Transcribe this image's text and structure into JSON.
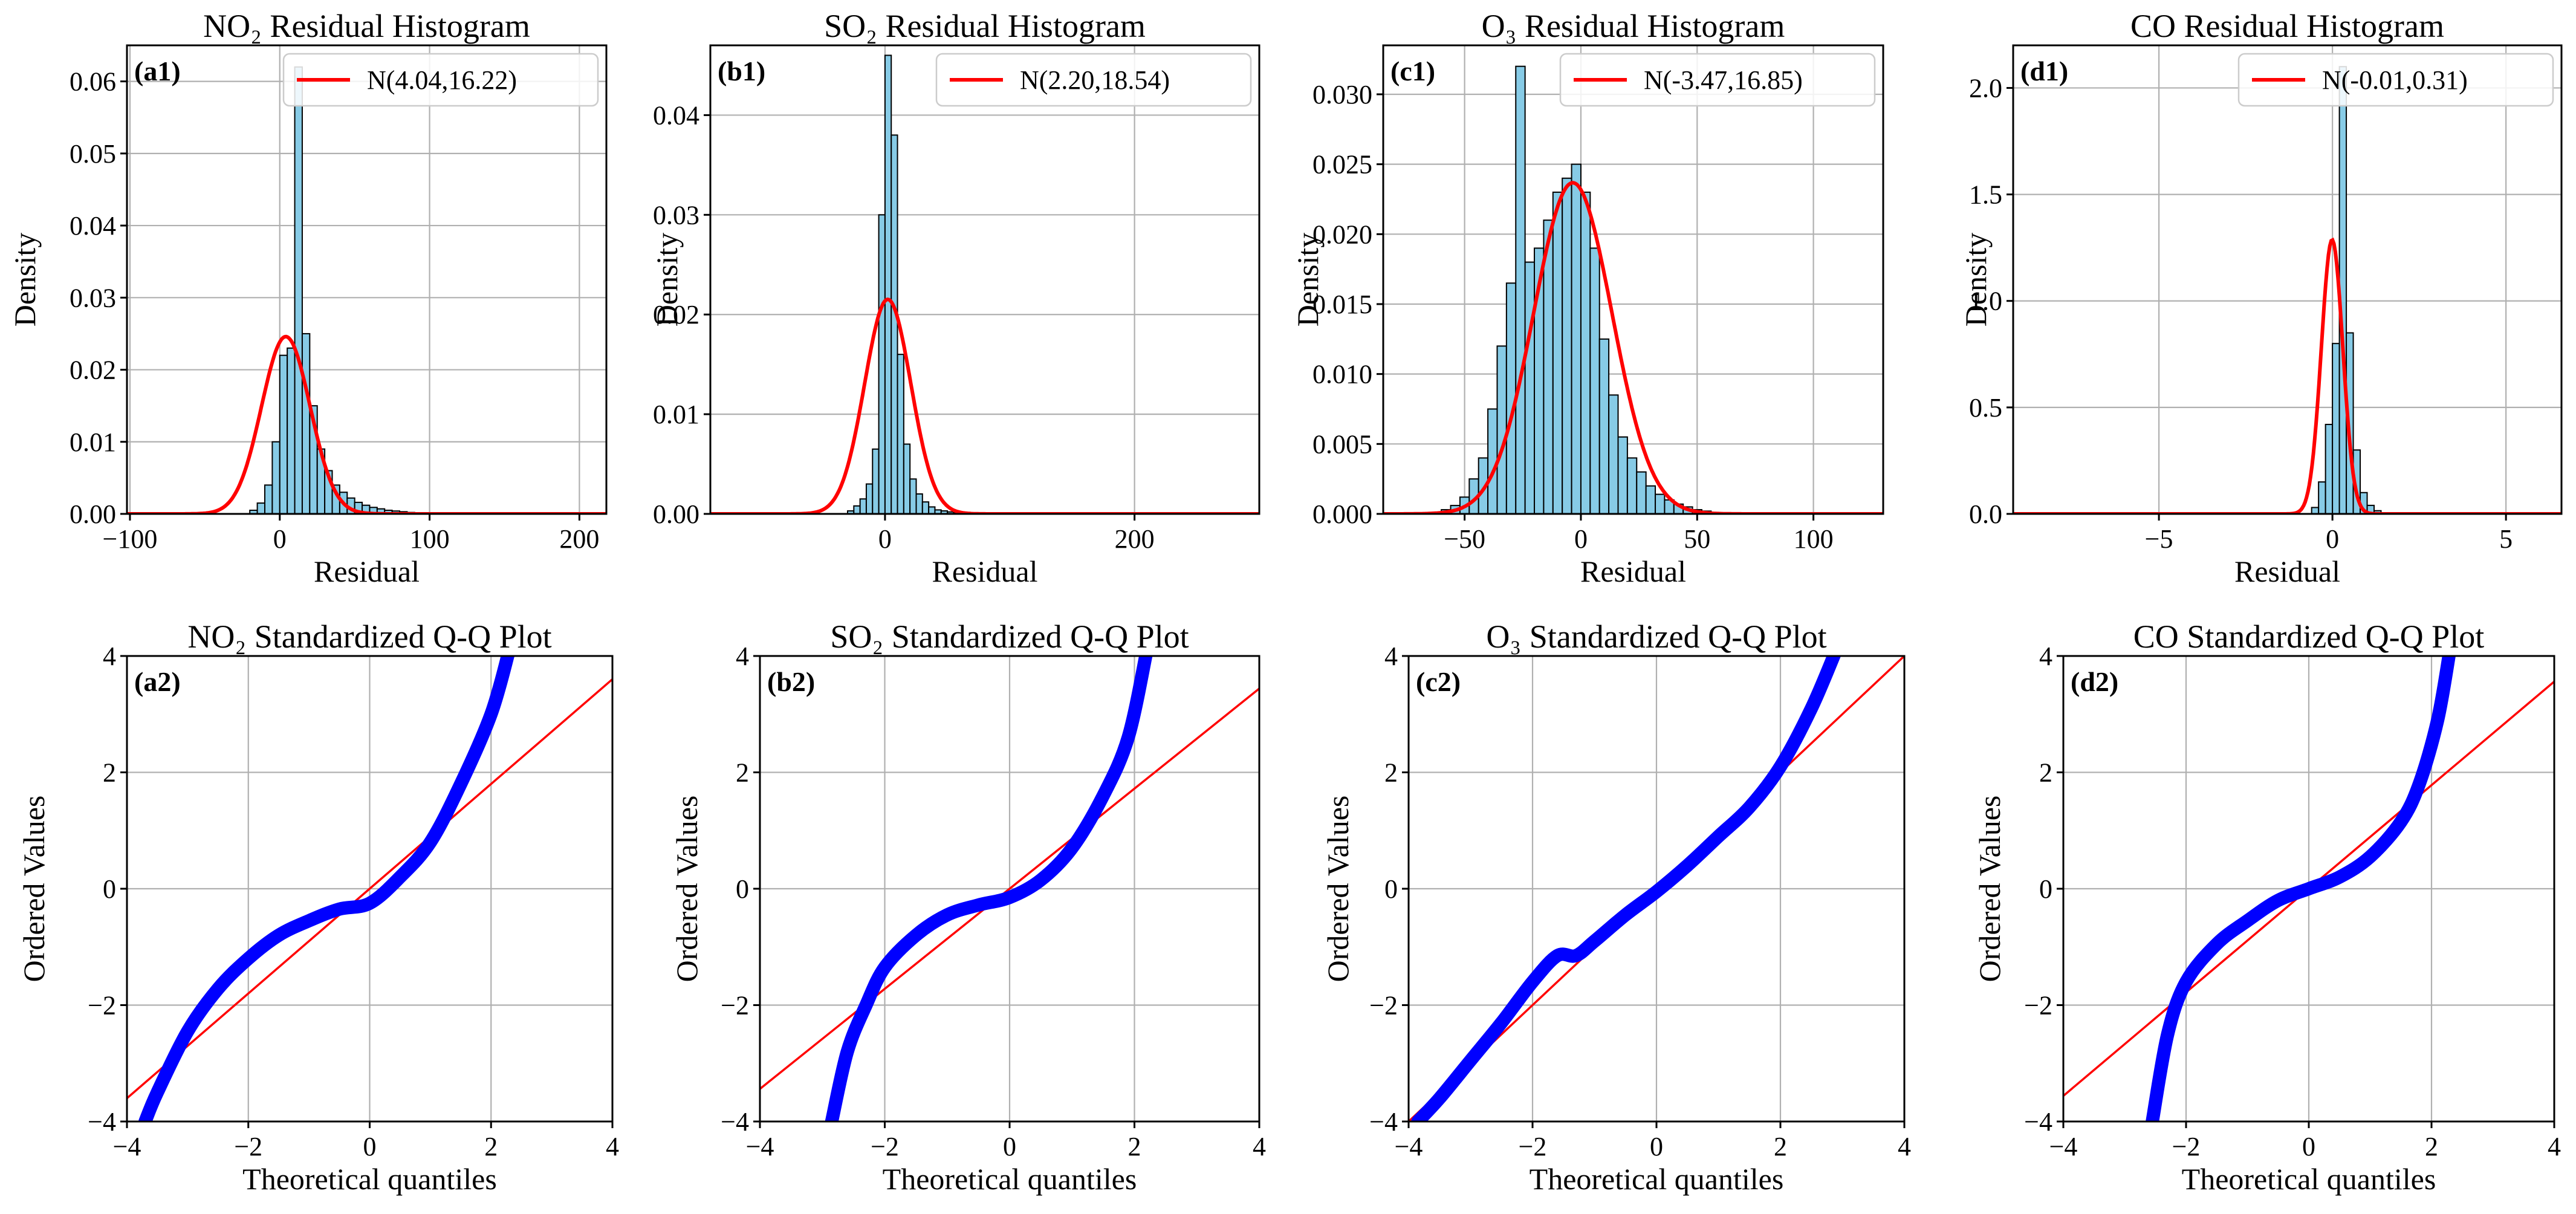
{
  "figure": {
    "background": "#ffffff",
    "hist_color": "#87cbe6",
    "fit_color": "#ff0000",
    "qq_color": "#0000ff"
  },
  "chart_data": [
    {
      "id": "a1",
      "type": "bar",
      "panel_label": "(a1)",
      "title": "NO₂ Residual Histogram",
      "xlabel": "Residual",
      "ylabel": "Density",
      "xlim": [
        -102,
        218
      ],
      "ylim": [
        0,
        0.065
      ],
      "xticks": [
        -100,
        0,
        100,
        200
      ],
      "xticklabels": [
        "−100",
        "0",
        "100",
        "200"
      ],
      "yticks": [
        0,
        0.01,
        0.02,
        0.03,
        0.04,
        0.05,
        0.06
      ],
      "yticklabels": [
        "0.00",
        "0.01",
        "0.02",
        "0.03",
        "0.04",
        "0.05",
        "0.06"
      ],
      "bin_start": -20,
      "bin_width": 5,
      "values": [
        0.0005,
        0.0015,
        0.004,
        0.01,
        0.022,
        0.023,
        0.062,
        0.025,
        0.015,
        0.009,
        0.006,
        0.004,
        0.003,
        0.0022,
        0.0016,
        0.0012,
        0.0009,
        0.0007,
        0.0005,
        0.0004,
        0.0003,
        0.0002,
        0.00015,
        0.0001
      ],
      "fit": {
        "mean": 4.04,
        "sd": 16.22
      },
      "legend": "N(4.04,16.22)"
    },
    {
      "id": "b1",
      "type": "bar",
      "panel_label": "(b1)",
      "title": "SO₂ Residual Histogram",
      "xlabel": "Residual",
      "ylabel": "Density",
      "xlim": [
        -140,
        300
      ],
      "ylim": [
        0,
        0.047
      ],
      "xticks": [
        0,
        200
      ],
      "xticklabels": [
        "0",
        "200"
      ],
      "yticks": [
        0,
        0.01,
        0.02,
        0.03,
        0.04
      ],
      "yticklabels": [
        "0.00",
        "0.01",
        "0.02",
        "0.03",
        "0.04"
      ],
      "bin_start": -30,
      "bin_width": 5,
      "values": [
        0.0003,
        0.0008,
        0.0015,
        0.003,
        0.0065,
        0.03,
        0.046,
        0.038,
        0.016,
        0.007,
        0.0035,
        0.002,
        0.0012,
        0.0007,
        0.0004,
        0.0003,
        0.0002,
        0.0001
      ],
      "fit": {
        "mean": 2.2,
        "sd": 18.54
      },
      "legend": "N(2.20,18.54)"
    },
    {
      "id": "c1",
      "type": "bar",
      "panel_label": "(c1)",
      "title": "O₃ Residual Histogram",
      "xlabel": "Residual",
      "ylabel": "Density",
      "xlim": [
        -85,
        130
      ],
      "ylim": [
        0,
        0.0335
      ],
      "xticks": [
        -50,
        0,
        50,
        100
      ],
      "xticklabels": [
        "−50",
        "0",
        "50",
        "100"
      ],
      "yticks": [
        0,
        0.005,
        0.01,
        0.015,
        0.02,
        0.025,
        0.03
      ],
      "yticklabels": [
        "0.000",
        "0.005",
        "0.010",
        "0.015",
        "0.020",
        "0.025",
        "0.030"
      ],
      "bin_start": -60,
      "bin_width": 4,
      "values": [
        0.0003,
        0.0006,
        0.0012,
        0.0025,
        0.004,
        0.0075,
        0.012,
        0.0165,
        0.032,
        0.018,
        0.019,
        0.021,
        0.023,
        0.024,
        0.025,
        0.023,
        0.019,
        0.0125,
        0.0085,
        0.0055,
        0.004,
        0.003,
        0.002,
        0.0014,
        0.001,
        0.0007,
        0.0005,
        0.0003,
        0.0002,
        0.0001
      ],
      "fit": {
        "mean": -3.47,
        "sd": 16.85
      },
      "legend": "N(-3.47,16.85)"
    },
    {
      "id": "d1",
      "type": "bar",
      "panel_label": "(d1)",
      "title": "CO Residual Histogram",
      "xlabel": "Residual",
      "ylabel": "Density",
      "xlim": [
        -9.2,
        6.6
      ],
      "ylim": [
        0,
        2.2
      ],
      "xticks": [
        -5,
        0,
        5
      ],
      "xticklabels": [
        "−5",
        "0",
        "5"
      ],
      "yticks": [
        0,
        0.5,
        1.0,
        1.5,
        2.0
      ],
      "yticklabels": [
        "0.0",
        "0.5",
        "1.0",
        "1.5",
        "2.0"
      ],
      "bin_start": -0.6,
      "bin_width": 0.2,
      "values": [
        0.03,
        0.15,
        0.42,
        0.8,
        2.1,
        0.85,
        0.3,
        0.1,
        0.04,
        0.015
      ],
      "fit": {
        "mean": -0.01,
        "sd": 0.31
      },
      "legend": "N(-0.01,0.31)"
    },
    {
      "id": "a2",
      "type": "line",
      "panel_label": "(a2)",
      "title": "NO₂ Standardized Q-Q Plot",
      "xlabel": "Theoretical quantiles",
      "ylabel": "Ordered Values",
      "xlim": [
        -4,
        4
      ],
      "ylim": [
        -4,
        4
      ],
      "xticks": [
        -4,
        -2,
        0,
        2,
        4
      ],
      "xticklabels": [
        "−4",
        "−2",
        "0",
        "2",
        "4"
      ],
      "yticks": [
        -4,
        -2,
        0,
        2,
        4
      ],
      "yticklabels": [
        "−4",
        "−2",
        "0",
        "2",
        "4"
      ],
      "ref_line": {
        "slope": 0.9,
        "intercept": 0.0
      },
      "series": {
        "name": "ordered values",
        "x": [
          -3.7,
          -3.5,
          -3.0,
          -2.5,
          -2.0,
          -1.5,
          -1.0,
          -0.5,
          0.0,
          0.5,
          1.0,
          1.5,
          2.0,
          2.3
        ],
        "values": [
          -4.0,
          -3.5,
          -2.45,
          -1.72,
          -1.2,
          -0.8,
          -0.55,
          -0.35,
          -0.25,
          0.2,
          0.8,
          1.8,
          3.0,
          4.1
        ]
      }
    },
    {
      "id": "b2",
      "type": "line",
      "panel_label": "(b2)",
      "title": "SO₂ Standardized Q-Q Plot",
      "xlabel": "Theoretical quantiles",
      "ylabel": "Ordered Values",
      "xlim": [
        -4,
        4
      ],
      "ylim": [
        -4,
        4
      ],
      "xticks": [
        -4,
        -2,
        0,
        2,
        4
      ],
      "xticklabels": [
        "−4",
        "−2",
        "0",
        "2",
        "4"
      ],
      "yticks": [
        -4,
        -2,
        0,
        2,
        4
      ],
      "yticklabels": [
        "−4",
        "−2",
        "0",
        "2",
        "4"
      ],
      "ref_line": {
        "slope": 0.86,
        "intercept": 0.0
      },
      "series": {
        "name": "ordered values",
        "x": [
          -2.85,
          -2.6,
          -2.3,
          -2.0,
          -1.5,
          -1.0,
          -0.5,
          0.0,
          0.5,
          1.0,
          1.5,
          1.9,
          2.2
        ],
        "values": [
          -4.0,
          -2.8,
          -2.0,
          -1.35,
          -0.8,
          -0.45,
          -0.28,
          -0.15,
          0.15,
          0.7,
          1.6,
          2.6,
          4.1
        ]
      }
    },
    {
      "id": "c2",
      "type": "line",
      "panel_label": "(c2)",
      "title": "O₃ Standardized Q-Q Plot",
      "xlabel": "Theoretical quantiles",
      "ylabel": "Ordered Values",
      "xlim": [
        -4,
        4
      ],
      "ylim": [
        -4,
        4
      ],
      "xticks": [
        -4,
        -2,
        0,
        2,
        4
      ],
      "xticklabels": [
        "−4",
        "−2",
        "0",
        "2",
        "4"
      ],
      "yticks": [
        -4,
        -2,
        0,
        2,
        4
      ],
      "yticklabels": [
        "−4",
        "−2",
        "0",
        "2",
        "4"
      ],
      "ref_line": {
        "slope": 1.0,
        "intercept": 0.0
      },
      "series": {
        "name": "ordered values",
        "x": [
          -3.85,
          -3.5,
          -3.0,
          -2.5,
          -2.0,
          -1.6,
          -1.3,
          -1.0,
          -0.5,
          0.0,
          0.5,
          1.0,
          1.5,
          2.0,
          2.5,
          2.9
        ],
        "values": [
          -4.0,
          -3.6,
          -2.95,
          -2.3,
          -1.6,
          -1.15,
          -1.15,
          -0.9,
          -0.45,
          -0.05,
          0.4,
          0.9,
          1.4,
          2.1,
          3.1,
          4.1
        ]
      }
    },
    {
      "id": "d2",
      "type": "line",
      "panel_label": "(d2)",
      "title": "CO Standardized Q-Q Plot",
      "xlabel": "Theoretical quantiles",
      "ylabel": "Ordered Values",
      "xlim": [
        -4,
        4
      ],
      "ylim": [
        -4,
        4
      ],
      "xticks": [
        -4,
        -2,
        0,
        2,
        4
      ],
      "xticklabels": [
        "−4",
        "−2",
        "0",
        "2",
        "4"
      ],
      "yticks": [
        -4,
        -2,
        0,
        2,
        4
      ],
      "yticklabels": [
        "−4",
        "−2",
        "0",
        "2",
        "4"
      ],
      "ref_line": {
        "slope": 0.89,
        "intercept": 0.0
      },
      "series": {
        "name": "ordered values",
        "x": [
          -2.55,
          -2.3,
          -2.0,
          -1.5,
          -1.0,
          -0.5,
          0.0,
          0.5,
          1.0,
          1.5,
          1.8,
          2.1,
          2.3
        ],
        "values": [
          -4.0,
          -2.5,
          -1.6,
          -0.95,
          -0.55,
          -0.2,
          0.0,
          0.2,
          0.55,
          1.15,
          1.8,
          2.9,
          4.1
        ]
      }
    }
  ]
}
